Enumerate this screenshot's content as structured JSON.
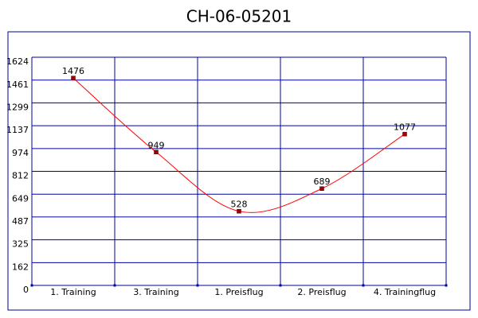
{
  "chart_data": {
    "type": "line",
    "title": "CH-06-05201",
    "categories": [
      "1. Training",
      "3. Training",
      "1. Preisflug",
      "2. Preisflug",
      "4. Trainingflug"
    ],
    "series": [
      {
        "name": "CH-06-05201",
        "color": "#ff0000",
        "values": [
          1476,
          949,
          528,
          689,
          1077
        ]
      }
    ],
    "ylim": [
      0,
      1624
    ],
    "yticks": [
      0,
      162,
      325,
      487,
      649,
      812,
      974,
      1137,
      1299,
      1461,
      1624
    ],
    "grid": true
  }
}
